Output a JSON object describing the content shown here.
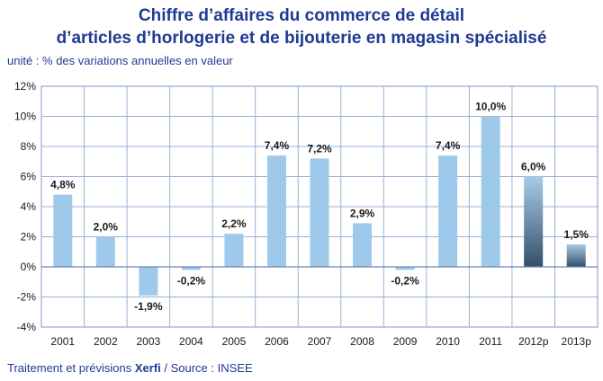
{
  "title_line1": "Chiffre d’affaires du commerce de détail",
  "title_line2": "d’articles d’horlogerie et de bijouterie en magasin spécialisé",
  "unit_text": "unité : % des variations annuelles en valeur",
  "footer": {
    "prefix": "Traitement et prévisions ",
    "brand": "Xerfi",
    "suffix": " / Source : INSEE"
  },
  "chart_data": {
    "type": "bar",
    "categories": [
      "2001",
      "2002",
      "2003",
      "2004",
      "2005",
      "2006",
      "2007",
      "2008",
      "2009",
      "2010",
      "2011",
      "2012p",
      "2013p"
    ],
    "values": [
      4.8,
      2.0,
      -1.9,
      -0.2,
      2.2,
      7.4,
      7.2,
      2.9,
      -0.2,
      7.4,
      10.0,
      6.0,
      1.5
    ],
    "data_labels": [
      "4,8%",
      "2,0%",
      "-1,9%",
      "-0,2%",
      "2,2%",
      "7,4%",
      "7,2%",
      "2,9%",
      "-0,2%",
      "7,4%",
      "10,0%",
      "6,0%",
      "1,5%"
    ],
    "forecast": [
      false,
      false,
      false,
      false,
      false,
      false,
      false,
      false,
      false,
      false,
      false,
      true,
      true
    ],
    "yticks": [
      12,
      10,
      8,
      6,
      4,
      2,
      0,
      -2,
      -4
    ],
    "ytick_labels": [
      "12%",
      "10%",
      "8%",
      "6%",
      "4%",
      "2%",
      "0%",
      "-2%",
      "-4%"
    ],
    "ylim": [
      -4,
      12
    ],
    "grid": true,
    "colors": {
      "bar": "#9ec9ea",
      "forecast_top": "#a9cbe6",
      "forecast_bottom": "#33506a",
      "grid": "#9ab0d8",
      "plot_border": "#7f96c8",
      "title": "#1f3a93"
    }
  }
}
